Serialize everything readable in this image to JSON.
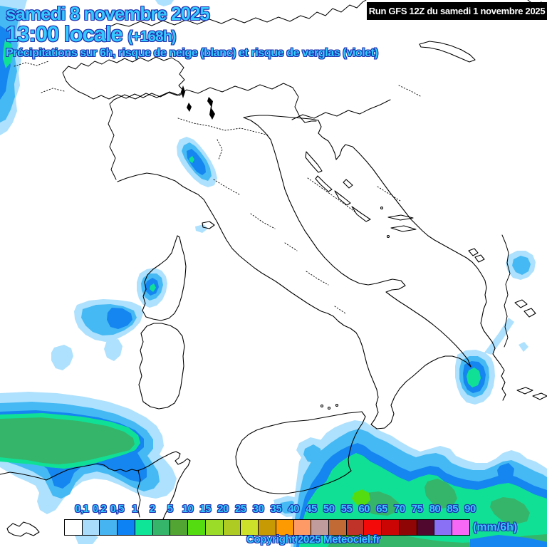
{
  "header": {
    "date_line": "samedi 8 novembre 2025",
    "time_line": "13:00 locale",
    "time_offset": "(+168h)",
    "subtitle": "Précipitations sur 6h, risque de neige (blanc) et risque de verglas (violet)",
    "text_color": "#35C9FF",
    "outline_color": "#2030AE"
  },
  "run_box": {
    "label": "Run GFS 12Z du samedi 1 novembre 2025",
    "background": "#000000",
    "text_color": "#FFFFFF"
  },
  "legend": {
    "unit": "(mm/6h)",
    "labels": [
      "0,1",
      "0,2",
      "0,5",
      "1",
      "2",
      "5",
      "10",
      "15",
      "20",
      "25",
      "30",
      "35",
      "40",
      "45",
      "50",
      "55",
      "60",
      "65",
      "70",
      "75",
      "80",
      "85",
      "90"
    ],
    "colors": [
      "#FFFFFF",
      "#A8DCFA",
      "#46B4F0",
      "#0C82F5",
      "#0FE596",
      "#35B56A",
      "#52A433",
      "#55DC10",
      "#9ADC28",
      "#AECB23",
      "#CDE02A",
      "#C79A04",
      "#FD9A01",
      "#FD9A66",
      "#C19C9C",
      "#C16A35",
      "#BF3328",
      "#F50A0A",
      "#CB0404",
      "#8F0404",
      "#50082F",
      "#8A70F5",
      "#F768F7"
    ]
  },
  "footer": {
    "copyright": "Copyright 2025 Meteociel.fr"
  }
}
